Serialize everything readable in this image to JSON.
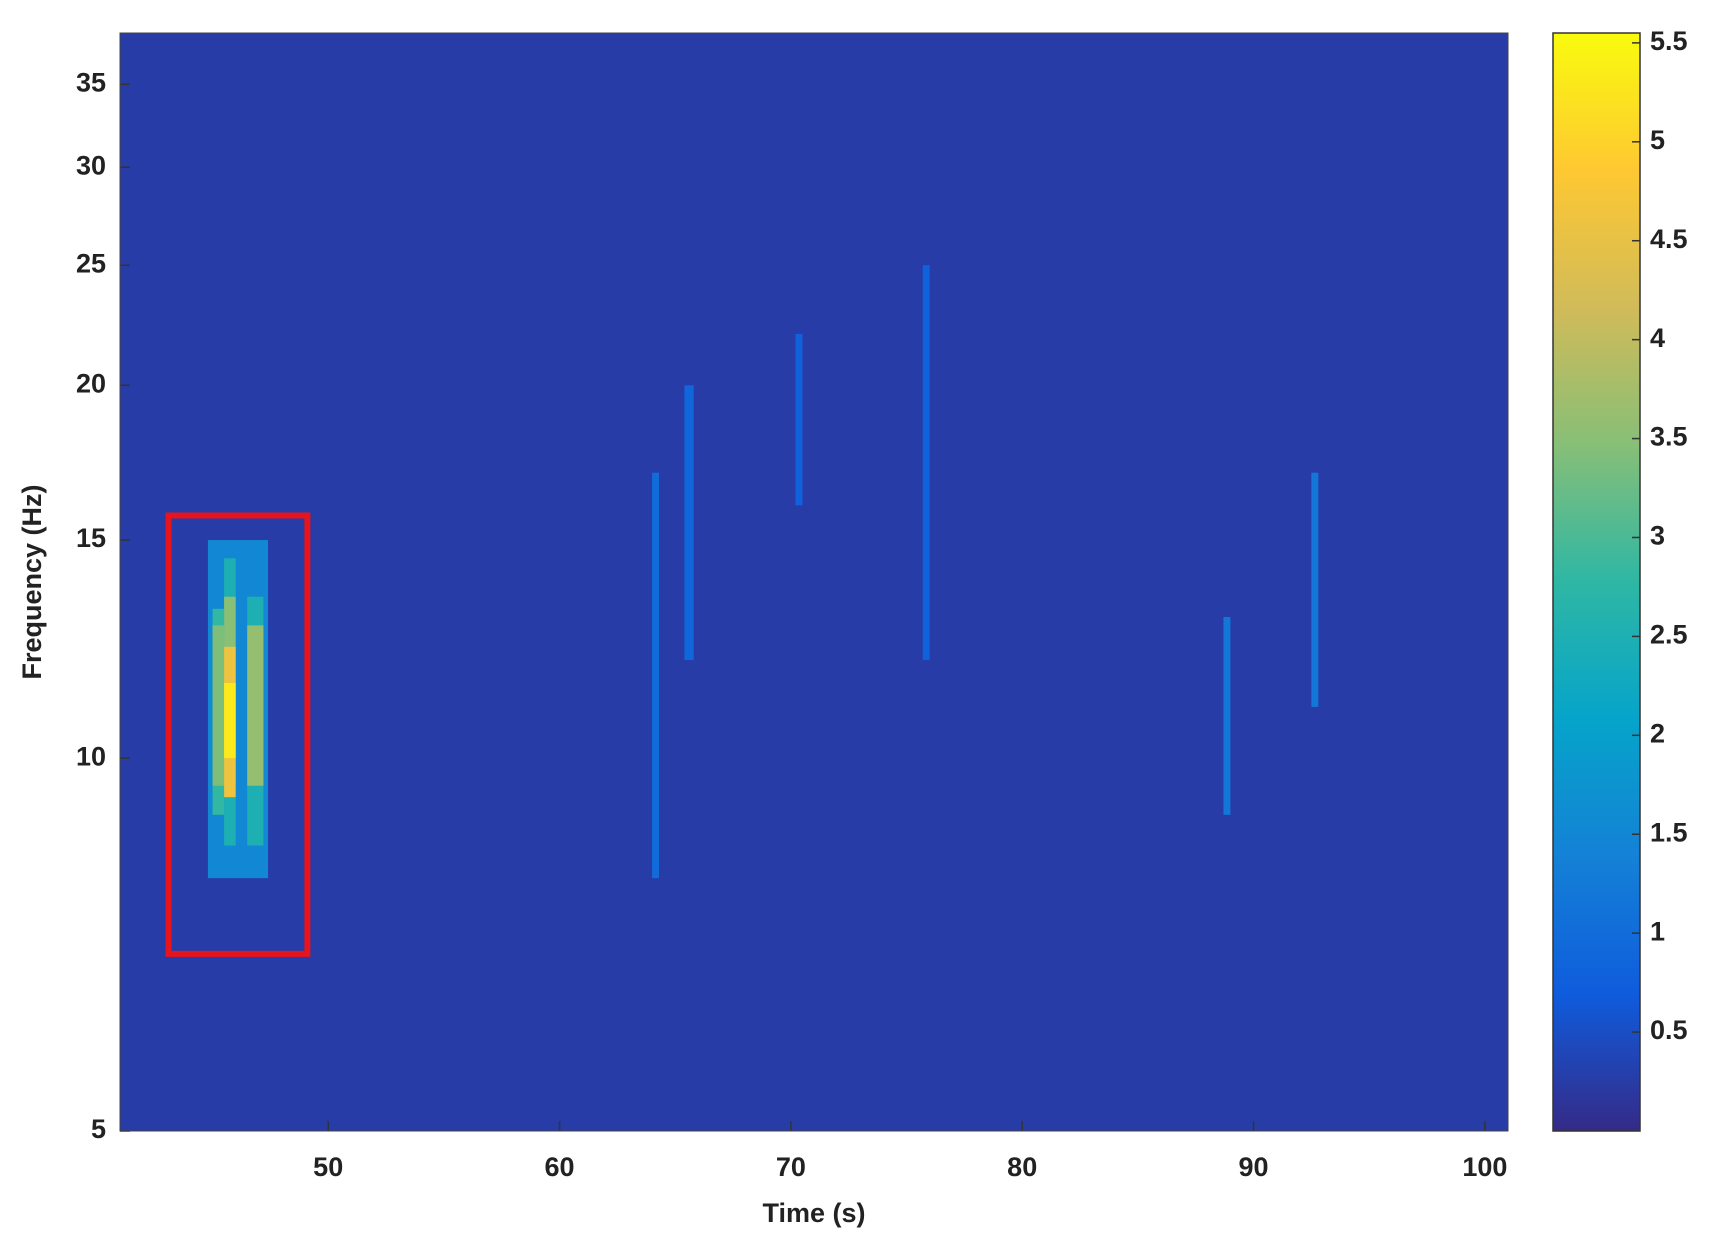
{
  "chart_data": {
    "type": "heatmap",
    "x_label": "Time (s)",
    "y_label": "Frequency (Hz)",
    "xlim": [
      41,
      101
    ],
    "xticks": [
      50,
      60,
      70,
      80,
      90,
      100
    ],
    "ylim": [
      5,
      38.5
    ],
    "yticks": [
      5,
      10,
      15,
      20,
      25,
      30,
      35
    ],
    "y_scale": "log",
    "clim": [
      0,
      5.55
    ],
    "cticks": [
      0.5,
      1,
      1.5,
      2,
      2.5,
      3,
      3.5,
      4,
      4.5,
      5,
      5.5
    ],
    "colormap": [
      "#352a87",
      "#0f5cdd",
      "#1481d6",
      "#06a4ca",
      "#2eb7a4",
      "#87bf77",
      "#d1bb59",
      "#fec832",
      "#f9fb0e"
    ],
    "z_background": 0.25,
    "cells": [
      {
        "x": [
          64,
          64.3
        ],
        "y": [
          8,
          17
        ],
        "value": 1.0
      },
      {
        "x": [
          65.4,
          65.8
        ],
        "y": [
          12,
          20
        ],
        "value": 0.9
      },
      {
        "x": [
          70.2,
          70.5
        ],
        "y": [
          16,
          22
        ],
        "value": 0.8
      },
      {
        "x": [
          75.7,
          76
        ],
        "y": [
          12,
          25
        ],
        "value": 0.8
      },
      {
        "x": [
          88.7,
          89
        ],
        "y": [
          9,
          13
        ],
        "value": 1.2
      },
      {
        "x": [
          92.5,
          92.8
        ],
        "y": [
          11,
          17
        ],
        "value": 1.2
      },
      {
        "x": [
          44.8,
          47.4
        ],
        "y": [
          8,
          15
        ],
        "value": 1.5
      },
      {
        "x": [
          45,
          45.5
        ],
        "y": [
          9,
          13.2
        ],
        "value": 2.8
      },
      {
        "x": [
          45.5,
          46
        ],
        "y": [
          8.5,
          14.5
        ],
        "value": 2.5
      },
      {
        "x": [
          46.5,
          47.2
        ],
        "y": [
          8.5,
          13.5
        ],
        "value": 2.5
      },
      {
        "x": [
          45,
          45.5
        ],
        "y": [
          9.5,
          12.8
        ],
        "value": 3.4
      },
      {
        "x": [
          45.5,
          46
        ],
        "y": [
          9.5,
          13.5
        ],
        "value": 3.5
      },
      {
        "x": [
          46.5,
          47.2
        ],
        "y": [
          9.5,
          12.8
        ],
        "value": 3.6
      },
      {
        "x": [
          45.5,
          46
        ],
        "y": [
          9.3,
          12.3
        ],
        "value": 4.6
      },
      {
        "x": [
          45.5,
          46
        ],
        "y": [
          10,
          11.5
        ],
        "value": 5.3
      }
    ],
    "highlight_box": {
      "x": [
        43.1,
        49.1
      ],
      "y": [
        6.95,
        15.7
      ],
      "color": "#e8141c"
    }
  }
}
